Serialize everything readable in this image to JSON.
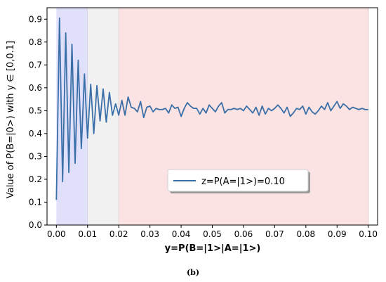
{
  "chart_data": {
    "type": "line",
    "xlabel": "y=P(B=|1>|A=|1>)",
    "ylabel": "Value of P(B=|0>) with y ∈ [0,0.1]",
    "xlim": [
      -0.003,
      0.103
    ],
    "ylim": [
      0.0,
      0.95
    ],
    "xticks": [
      "0.00",
      "0.01",
      "0.02",
      "0.03",
      "0.04",
      "0.05",
      "0.06",
      "0.07",
      "0.08",
      "0.09",
      "0.10"
    ],
    "yticks": [
      "0.0",
      "0.1",
      "0.2",
      "0.3",
      "0.4",
      "0.5",
      "0.6",
      "0.7",
      "0.8",
      "0.9"
    ],
    "grid": false,
    "legend_position": "lower-center",
    "regions": [
      {
        "x_from": 0.0,
        "x_to": 0.01,
        "color": "#e0e0fb"
      },
      {
        "x_from": 0.01,
        "x_to": 0.02,
        "color": "#f1f1f1"
      },
      {
        "x_from": 0.02,
        "x_to": 0.1,
        "color": "#fbe3e3"
      }
    ],
    "series": [
      {
        "name": "z=P(A=|1>)=0.10",
        "color": "#3a6fa8",
        "x": [
          0.0,
          0.001,
          0.002,
          0.003,
          0.004,
          0.005,
          0.006,
          0.007,
          0.008,
          0.009,
          0.01,
          0.011,
          0.012,
          0.013,
          0.014,
          0.015,
          0.016,
          0.017,
          0.018,
          0.019,
          0.02,
          0.021,
          0.022,
          0.023,
          0.024,
          0.025,
          0.026,
          0.027,
          0.028,
          0.029,
          0.03,
          0.031,
          0.032,
          0.033,
          0.034,
          0.035,
          0.036,
          0.037,
          0.038,
          0.039,
          0.04,
          0.041,
          0.042,
          0.043,
          0.044,
          0.045,
          0.046,
          0.047,
          0.048,
          0.049,
          0.05,
          0.051,
          0.052,
          0.053,
          0.054,
          0.055,
          0.056,
          0.057,
          0.058,
          0.059,
          0.06,
          0.061,
          0.062,
          0.063,
          0.064,
          0.065,
          0.066,
          0.067,
          0.068,
          0.069,
          0.07,
          0.071,
          0.072,
          0.073,
          0.074,
          0.075,
          0.076,
          0.077,
          0.078,
          0.079,
          0.08,
          0.081,
          0.082,
          0.083,
          0.084,
          0.085,
          0.086,
          0.087,
          0.088,
          0.089,
          0.09,
          0.091,
          0.092,
          0.093,
          0.094,
          0.095,
          0.096,
          0.097,
          0.098,
          0.099,
          0.1
        ],
        "y": [
          0.11,
          0.905,
          0.19,
          0.84,
          0.23,
          0.79,
          0.27,
          0.72,
          0.335,
          0.66,
          0.38,
          0.615,
          0.4,
          0.61,
          0.455,
          0.595,
          0.45,
          0.58,
          0.48,
          0.53,
          0.48,
          0.545,
          0.48,
          0.56,
          0.515,
          0.51,
          0.495,
          0.54,
          0.47,
          0.515,
          0.52,
          0.495,
          0.51,
          0.505,
          0.505,
          0.51,
          0.49,
          0.525,
          0.51,
          0.515,
          0.475,
          0.51,
          0.535,
          0.52,
          0.51,
          0.51,
          0.485,
          0.51,
          0.49,
          0.525,
          0.51,
          0.495,
          0.52,
          0.535,
          0.49,
          0.505,
          0.505,
          0.51,
          0.505,
          0.51,
          0.5,
          0.52,
          0.505,
          0.49,
          0.515,
          0.48,
          0.52,
          0.485,
          0.51,
          0.5,
          0.51,
          0.525,
          0.51,
          0.49,
          0.515,
          0.475,
          0.49,
          0.51,
          0.505,
          0.52,
          0.485,
          0.515,
          0.495,
          0.485,
          0.5,
          0.52,
          0.505,
          0.535,
          0.5,
          0.52,
          0.54,
          0.51,
          0.53,
          0.52,
          0.505,
          0.515,
          0.51,
          0.505,
          0.51,
          0.505,
          0.505
        ]
      }
    ]
  },
  "caption": "(b)"
}
